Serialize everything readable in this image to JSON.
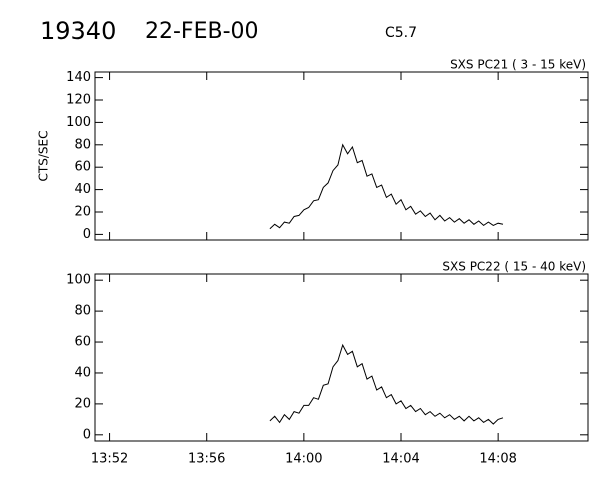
{
  "chart_data": [
    {
      "type": "line",
      "title": "19340",
      "subtitle": "22-FEB-00",
      "annotation": "C5.7",
      "label": "SXS PC21  (  3 - 15 keV)",
      "y_label": "CTS/SEC",
      "color": "#000000",
      "x": [
        58.6,
        58.8,
        59.0,
        59.2,
        59.4,
        59.6,
        59.8,
        60.0,
        60.2,
        60.4,
        60.6,
        60.8,
        61.0,
        61.2,
        61.4,
        61.6,
        61.8,
        62.0,
        62.2,
        62.4,
        62.6,
        62.8,
        63.0,
        63.2,
        63.4,
        63.6,
        63.8,
        64.0,
        64.2,
        64.4,
        64.6,
        64.8,
        65.0,
        65.2,
        65.4,
        65.6,
        65.8,
        66.0,
        66.2,
        66.4,
        66.6,
        66.8,
        67.0,
        67.2,
        67.4,
        67.6,
        67.8,
        68.0,
        68.2
      ],
      "values": [
        5,
        9,
        6,
        11,
        10,
        16,
        17,
        22,
        24,
        30,
        31,
        42,
        46,
        57,
        62,
        80,
        72,
        78,
        64,
        66,
        52,
        54,
        42,
        44,
        33,
        36,
        27,
        31,
        22,
        25,
        18,
        21,
        16,
        19,
        13,
        17,
        12,
        15,
        11,
        14,
        10,
        13,
        9,
        12,
        8,
        11,
        8,
        10,
        9
      ],
      "xlim": [
        51.4,
        71.7
      ],
      "xticks": [
        52,
        56,
        60,
        64,
        68
      ],
      "ylim": [
        -5,
        145
      ],
      "yticks": [
        0,
        20,
        40,
        60,
        80,
        100,
        120,
        140
      ]
    },
    {
      "type": "line",
      "label": "SXS PC22  ( 15 - 40 keV)",
      "color": "#000000",
      "x": [
        58.6,
        58.8,
        59.0,
        59.2,
        59.4,
        59.6,
        59.8,
        60.0,
        60.2,
        60.4,
        60.6,
        60.8,
        61.0,
        61.2,
        61.4,
        61.6,
        61.8,
        62.0,
        62.2,
        62.4,
        62.6,
        62.8,
        63.0,
        63.2,
        63.4,
        63.6,
        63.8,
        64.0,
        64.2,
        64.4,
        64.6,
        64.8,
        65.0,
        65.2,
        65.4,
        65.6,
        65.8,
        66.0,
        66.2,
        66.4,
        66.6,
        66.8,
        67.0,
        67.2,
        67.4,
        67.6,
        67.8,
        68.0,
        68.2
      ],
      "values": [
        9,
        12,
        8,
        13,
        10,
        15,
        14,
        19,
        19,
        24,
        23,
        32,
        33,
        44,
        48,
        58,
        52,
        54,
        44,
        46,
        36,
        38,
        29,
        31,
        24,
        26,
        20,
        22,
        17,
        19,
        15,
        17,
        13,
        15,
        12,
        14,
        11,
        13,
        10,
        12,
        9,
        12,
        9,
        11,
        8,
        10,
        7,
        10,
        11
      ],
      "xlim": [
        51.4,
        71.7
      ],
      "xticks": [
        {
          "value": 52,
          "label": "13:52"
        },
        {
          "value": 56,
          "label": "13:56"
        },
        {
          "value": 60,
          "label": "14:00"
        },
        {
          "value": 64,
          "label": "14:04"
        },
        {
          "value": 68,
          "label": "14:08"
        }
      ],
      "ylim": [
        -4,
        104
      ],
      "yticks": [
        0,
        20,
        40,
        60,
        80,
        100
      ]
    }
  ]
}
